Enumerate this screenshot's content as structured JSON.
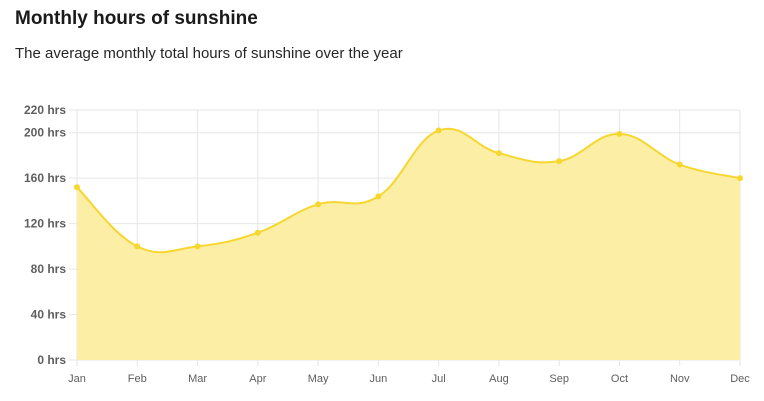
{
  "chart_data": {
    "type": "area",
    "title": "Monthly hours of sunshine",
    "subtitle": "The average monthly total hours of sunshine over the year",
    "categories": [
      "Jan",
      "Feb",
      "Mar",
      "Apr",
      "May",
      "Jun",
      "Jul",
      "Aug",
      "Sep",
      "Oct",
      "Nov",
      "Dec"
    ],
    "series": [
      {
        "values": [
          152,
          100,
          100,
          112,
          137,
          144,
          202,
          182,
          175,
          199,
          172,
          160
        ]
      }
    ],
    "y_ticks": [
      0,
      40,
      80,
      120,
      160,
      200,
      220
    ],
    "y_tick_labels": [
      "0 hrs",
      "40 hrs",
      "80 hrs",
      "120 hrs",
      "160 hrs",
      "200 hrs",
      "220 hrs"
    ],
    "ylim": [
      0,
      220
    ],
    "grid": true,
    "legend": "none",
    "line_color": "#f5d730",
    "fill_color": "#fdeea6"
  }
}
